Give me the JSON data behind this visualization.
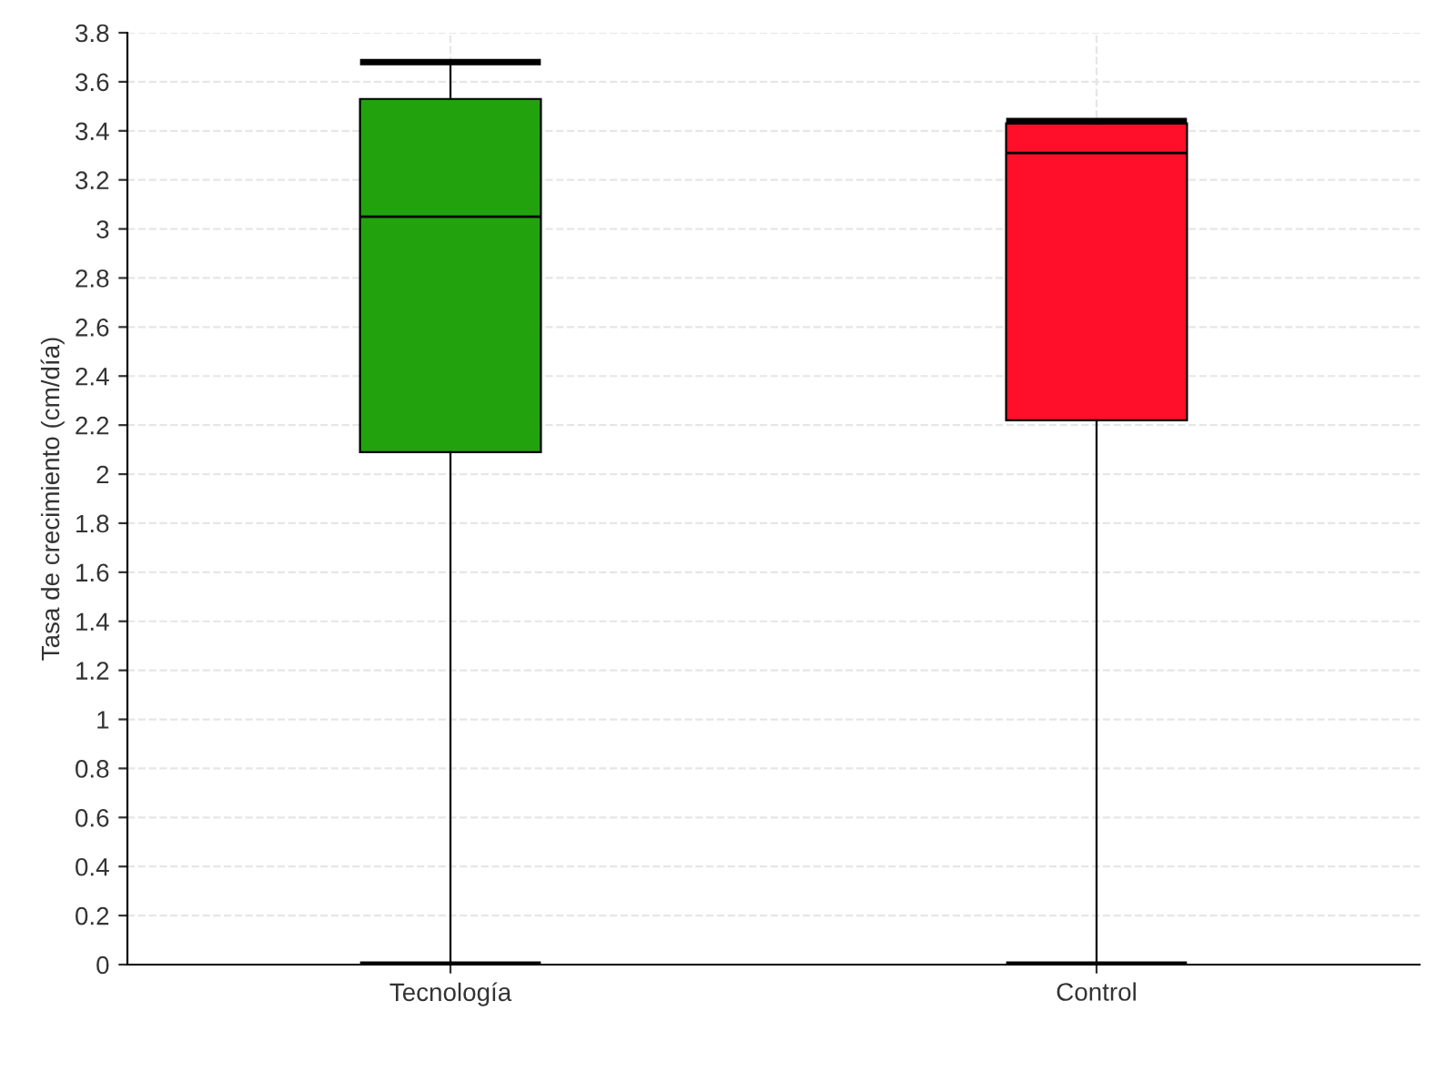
{
  "chart_data": {
    "type": "box",
    "ylabel": "Tasa de crecimiento (cm/día)",
    "categories": [
      "Tecnología",
      "Control"
    ],
    "colors": [
      "#22a30e",
      "#ff0f29"
    ],
    "boxes": [
      {
        "low": 0,
        "q1": 2.09,
        "median": 3.05,
        "q3": 3.53,
        "high": 3.68
      },
      {
        "low": 0,
        "q1": 2.22,
        "median": 3.31,
        "q3": 3.43,
        "high": 3.44
      }
    ],
    "ylim": [
      0,
      3.8
    ],
    "yticks": [
      0,
      0.2,
      0.4,
      0.6,
      0.8,
      1,
      1.2,
      1.4,
      1.6,
      1.8,
      2,
      2.2,
      2.4,
      2.6,
      2.8,
      3,
      3.2,
      3.4,
      3.6,
      3.8
    ],
    "grid": true
  }
}
